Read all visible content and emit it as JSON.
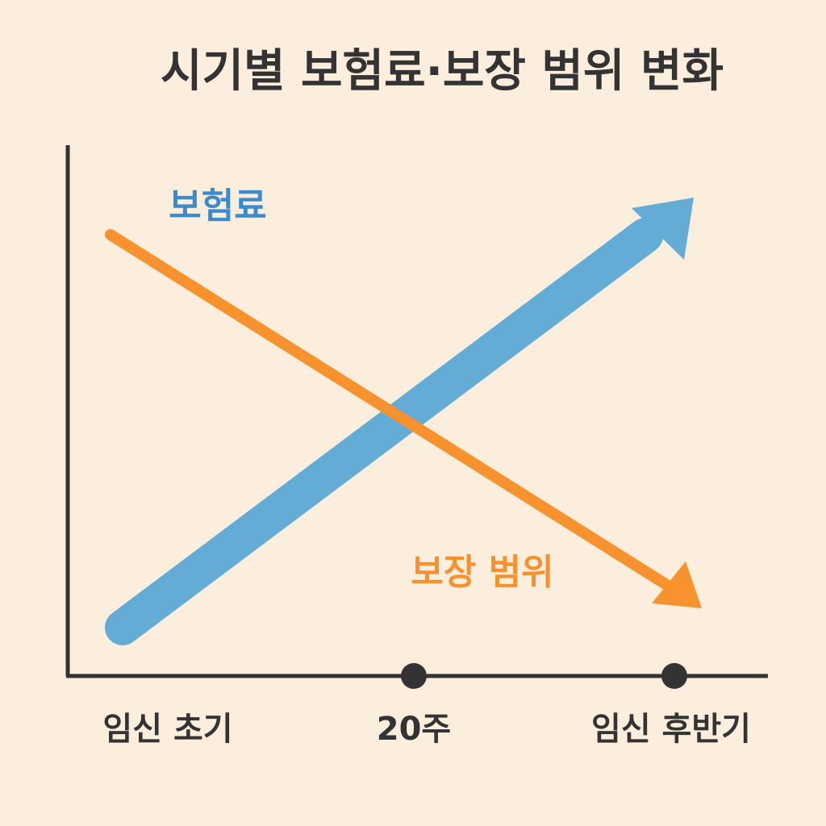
{
  "title": "시기별 보험료·보장 범위 변화",
  "lines": [
    {
      "label": "보험료"
    },
    {
      "label": "보장 범위"
    }
  ],
  "x_axis": {
    "labels": [
      "임신 초기",
      "20주",
      "임신 후반기"
    ]
  }
}
